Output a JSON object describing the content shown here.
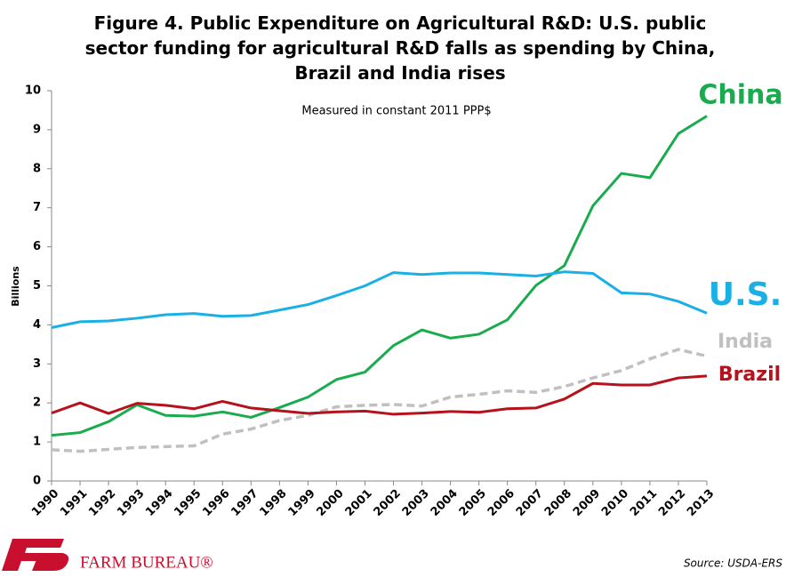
{
  "chart_data": {
    "type": "line",
    "title": [
      "Figure 4. Public Expenditure on Agricultural R&D: U.S. public",
      "sector funding for agricultural R&D falls as spending by China,",
      "Brazil and India rises"
    ],
    "subtitle": "Measured in constant 2011 PPP$",
    "ylabel": "Billions",
    "categories": [
      "1990",
      "1991",
      "1992",
      "1993",
      "1994",
      "1995",
      "1996",
      "1997",
      "1998",
      "1999",
      "2000",
      "2001",
      "2002",
      "2003",
      "2004",
      "2005",
      "2006",
      "2007",
      "2008",
      "2009",
      "2010",
      "2011",
      "2012",
      "2013"
    ],
    "series": [
      {
        "name": "China",
        "color": "#1aab4f",
        "dashed": false,
        "values": [
          1.17,
          1.24,
          1.52,
          1.95,
          1.68,
          1.66,
          1.77,
          1.63,
          1.88,
          2.15,
          2.6,
          2.79,
          3.47,
          3.87,
          3.66,
          3.76,
          4.13,
          5.01,
          5.52,
          7.05,
          7.88,
          7.77,
          8.9,
          9.35
        ]
      },
      {
        "name": "U.S.",
        "color": "#1ab0e6",
        "dashed": false,
        "values": [
          3.93,
          4.08,
          4.1,
          4.17,
          4.26,
          4.29,
          4.22,
          4.24,
          4.38,
          4.52,
          4.75,
          5.0,
          5.34,
          5.29,
          5.33,
          5.33,
          5.29,
          5.25,
          5.36,
          5.32,
          4.82,
          4.79,
          4.6,
          4.3
        ]
      },
      {
        "name": "India",
        "color": "#c0c0c0",
        "dashed": true,
        "values": [
          0.8,
          0.76,
          0.81,
          0.86,
          0.88,
          0.9,
          1.2,
          1.33,
          1.55,
          1.68,
          1.9,
          1.94,
          1.96,
          1.92,
          2.15,
          2.22,
          2.31,
          2.27,
          2.42,
          2.64,
          2.83,
          3.13,
          3.37,
          3.2
        ]
      },
      {
        "name": "Brazil",
        "color": "#b5121b",
        "dashed": false,
        "values": [
          1.74,
          2.0,
          1.73,
          1.99,
          1.94,
          1.85,
          2.04,
          1.87,
          1.8,
          1.73,
          1.77,
          1.79,
          1.71,
          1.74,
          1.78,
          1.76,
          1.85,
          1.87,
          2.1,
          2.5,
          2.46,
          2.46,
          2.64,
          2.69
        ]
      }
    ],
    "ylim": [
      0,
      10
    ],
    "yticks": [
      0,
      1,
      2,
      3,
      4,
      5,
      6,
      7,
      8,
      9,
      10
    ],
    "grid": false
  },
  "footer": {
    "logo": "FARM BUREAU®",
    "source": "Source: USDA-ERS"
  }
}
